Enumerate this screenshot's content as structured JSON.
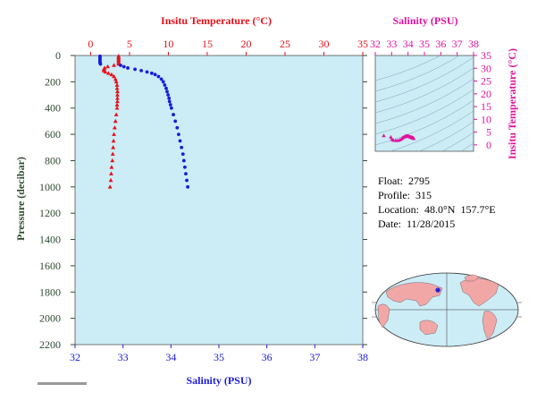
{
  "chart_data": [
    {
      "type": "scatter",
      "xlabel_top": "Insitu Temperature (°C)",
      "xlabel_bottom": "Salinity (PSU)",
      "ylabel": "Pressure (decibar)",
      "temp_ticks": [
        0,
        5,
        10,
        15,
        20,
        25,
        30,
        35
      ],
      "sal_ticks": [
        32,
        33,
        34,
        35,
        36,
        37,
        38
      ],
      "pres_ticks": [
        0,
        200,
        400,
        600,
        800,
        1000,
        1200,
        1400,
        1600,
        1800,
        2000,
        2200
      ],
      "temp_range": [
        -2,
        35
      ],
      "sal_range": [
        32,
        38
      ],
      "pres_range": [
        0,
        2200
      ],
      "series": [
        {
          "marker": "triangle",
          "color": "#e8101a",
          "points": [
            {
              "pressure": 5,
              "temperature": 3.6
            },
            {
              "pressure": 15,
              "temperature": 3.6
            },
            {
              "pressure": 25,
              "temperature": 3.6
            },
            {
              "pressure": 35,
              "temperature": 3.6
            },
            {
              "pressure": 45,
              "temperature": 3.6
            },
            {
              "pressure": 55,
              "temperature": 3.6
            },
            {
              "pressure": 65,
              "temperature": 3.6
            },
            {
              "pressure": 75,
              "temperature": 3.0
            },
            {
              "pressure": 85,
              "temperature": 2.2
            },
            {
              "pressure": 95,
              "temperature": 1.8
            },
            {
              "pressure": 105,
              "temperature": 1.7
            },
            {
              "pressure": 115,
              "temperature": 1.7
            },
            {
              "pressure": 125,
              "temperature": 1.9
            },
            {
              "pressure": 135,
              "temperature": 2.3
            },
            {
              "pressure": 145,
              "temperature": 2.7
            },
            {
              "pressure": 160,
              "temperature": 3.0
            },
            {
              "pressure": 180,
              "temperature": 3.2
            },
            {
              "pressure": 200,
              "temperature": 3.3
            },
            {
              "pressure": 225,
              "temperature": 3.4
            },
            {
              "pressure": 250,
              "temperature": 3.4
            },
            {
              "pressure": 275,
              "temperature": 3.45
            },
            {
              "pressure": 300,
              "temperature": 3.45
            },
            {
              "pressure": 325,
              "temperature": 3.45
            },
            {
              "pressure": 350,
              "temperature": 3.45
            },
            {
              "pressure": 375,
              "temperature": 3.4
            },
            {
              "pressure": 400,
              "temperature": 3.4
            },
            {
              "pressure": 450,
              "temperature": 3.3
            },
            {
              "pressure": 500,
              "temperature": 3.2
            },
            {
              "pressure": 550,
              "temperature": 3.1
            },
            {
              "pressure": 600,
              "temperature": 3.0
            },
            {
              "pressure": 650,
              "temperature": 2.95
            },
            {
              "pressure": 700,
              "temperature": 2.9
            },
            {
              "pressure": 750,
              "temperature": 2.85
            },
            {
              "pressure": 800,
              "temperature": 2.8
            },
            {
              "pressure": 850,
              "temperature": 2.7
            },
            {
              "pressure": 900,
              "temperature": 2.65
            },
            {
              "pressure": 950,
              "temperature": 2.6
            },
            {
              "pressure": 1000,
              "temperature": 2.5
            }
          ]
        },
        {
          "marker": "circle",
          "color": "#1a1adc",
          "points": [
            {
              "pressure": 5,
              "salinity": 32.52
            },
            {
              "pressure": 15,
              "salinity": 32.52
            },
            {
              "pressure": 25,
              "salinity": 32.52
            },
            {
              "pressure": 35,
              "salinity": 32.52
            },
            {
              "pressure": 45,
              "salinity": 32.52
            },
            {
              "pressure": 55,
              "salinity": 32.52
            },
            {
              "pressure": 65,
              "salinity": 32.53
            },
            {
              "pressure": 75,
              "salinity": 32.95
            },
            {
              "pressure": 85,
              "salinity": 33.02
            },
            {
              "pressure": 95,
              "salinity": 33.1
            },
            {
              "pressure": 105,
              "salinity": 33.25
            },
            {
              "pressure": 115,
              "salinity": 33.38
            },
            {
              "pressure": 125,
              "salinity": 33.5
            },
            {
              "pressure": 135,
              "salinity": 33.6
            },
            {
              "pressure": 145,
              "salinity": 33.67
            },
            {
              "pressure": 160,
              "salinity": 33.74
            },
            {
              "pressure": 180,
              "salinity": 33.8
            },
            {
              "pressure": 200,
              "salinity": 33.84
            },
            {
              "pressure": 225,
              "salinity": 33.87
            },
            {
              "pressure": 250,
              "salinity": 33.9
            },
            {
              "pressure": 275,
              "salinity": 33.92
            },
            {
              "pressure": 300,
              "salinity": 33.94
            },
            {
              "pressure": 325,
              "salinity": 33.96
            },
            {
              "pressure": 350,
              "salinity": 33.97
            },
            {
              "pressure": 375,
              "salinity": 33.99
            },
            {
              "pressure": 400,
              "salinity": 34.01
            },
            {
              "pressure": 450,
              "salinity": 34.05
            },
            {
              "pressure": 500,
              "salinity": 34.09
            },
            {
              "pressure": 550,
              "salinity": 34.13
            },
            {
              "pressure": 600,
              "salinity": 34.16
            },
            {
              "pressure": 650,
              "salinity": 34.19
            },
            {
              "pressure": 700,
              "salinity": 34.22
            },
            {
              "pressure": 750,
              "salinity": 34.25
            },
            {
              "pressure": 800,
              "salinity": 34.27
            },
            {
              "pressure": 850,
              "salinity": 34.29
            },
            {
              "pressure": 900,
              "salinity": 34.31
            },
            {
              "pressure": 950,
              "salinity": 34.33
            },
            {
              "pressure": 1000,
              "salinity": 34.35
            }
          ]
        }
      ]
    },
    {
      "type": "scatter",
      "title": "Salinity (PSU)",
      "ylabel": "Insitu Temperature (°C)",
      "sal_ticks": [
        32,
        33,
        34,
        35,
        36,
        37,
        38
      ],
      "temp_ticks": [
        0,
        5,
        10,
        15,
        20,
        25,
        30,
        35
      ],
      "sal_range": [
        32,
        38
      ],
      "temp_range": [
        -2.5,
        35
      ],
      "color": "#e0139e",
      "points": [
        {
          "salinity": 32.52,
          "temperature": 3.6
        },
        {
          "salinity": 32.95,
          "temperature": 3.0
        },
        {
          "salinity": 33.02,
          "temperature": 2.2
        },
        {
          "salinity": 33.1,
          "temperature": 1.8
        },
        {
          "salinity": 33.25,
          "temperature": 1.7
        },
        {
          "salinity": 33.38,
          "temperature": 1.7
        },
        {
          "salinity": 33.5,
          "temperature": 1.9
        },
        {
          "salinity": 33.6,
          "temperature": 2.3
        },
        {
          "salinity": 33.67,
          "temperature": 2.7
        },
        {
          "salinity": 33.74,
          "temperature": 3.0
        },
        {
          "salinity": 33.8,
          "temperature": 3.2
        },
        {
          "salinity": 33.84,
          "temperature": 3.3
        },
        {
          "salinity": 33.87,
          "temperature": 3.4
        },
        {
          "salinity": 33.9,
          "temperature": 3.4
        },
        {
          "salinity": 33.94,
          "temperature": 3.45
        },
        {
          "salinity": 33.97,
          "temperature": 3.45
        },
        {
          "salinity": 34.01,
          "temperature": 3.4
        },
        {
          "salinity": 34.05,
          "temperature": 3.3
        },
        {
          "salinity": 34.09,
          "temperature": 3.2
        },
        {
          "salinity": 34.13,
          "temperature": 3.1
        },
        {
          "salinity": 34.16,
          "temperature": 3.0
        },
        {
          "salinity": 34.19,
          "temperature": 2.95
        },
        {
          "salinity": 34.22,
          "temperature": 2.9
        },
        {
          "salinity": 34.25,
          "temperature": 2.85
        },
        {
          "salinity": 34.27,
          "temperature": 2.8
        },
        {
          "salinity": 34.29,
          "temperature": 2.7
        },
        {
          "salinity": 34.31,
          "temperature": 2.65
        },
        {
          "salinity": 34.33,
          "temperature": 2.6
        },
        {
          "salinity": 34.35,
          "temperature": 2.5
        }
      ]
    }
  ],
  "info": {
    "float": "Float:  2795",
    "profile": "Profile:  315",
    "location": "Location:  48.0°N  157.7°E",
    "date": "Date:  11/28/2015"
  },
  "colors": {
    "temperature": "#e8101a",
    "salinity": "#1a1adc",
    "ts_diagram": "#e0139e",
    "pressure_axis": "#2d4a2d",
    "plot_background": "#ccecf6",
    "land": "#f2a7a7"
  },
  "map": {
    "marker": {
      "lat": 48.0,
      "lon": 157.7
    }
  }
}
